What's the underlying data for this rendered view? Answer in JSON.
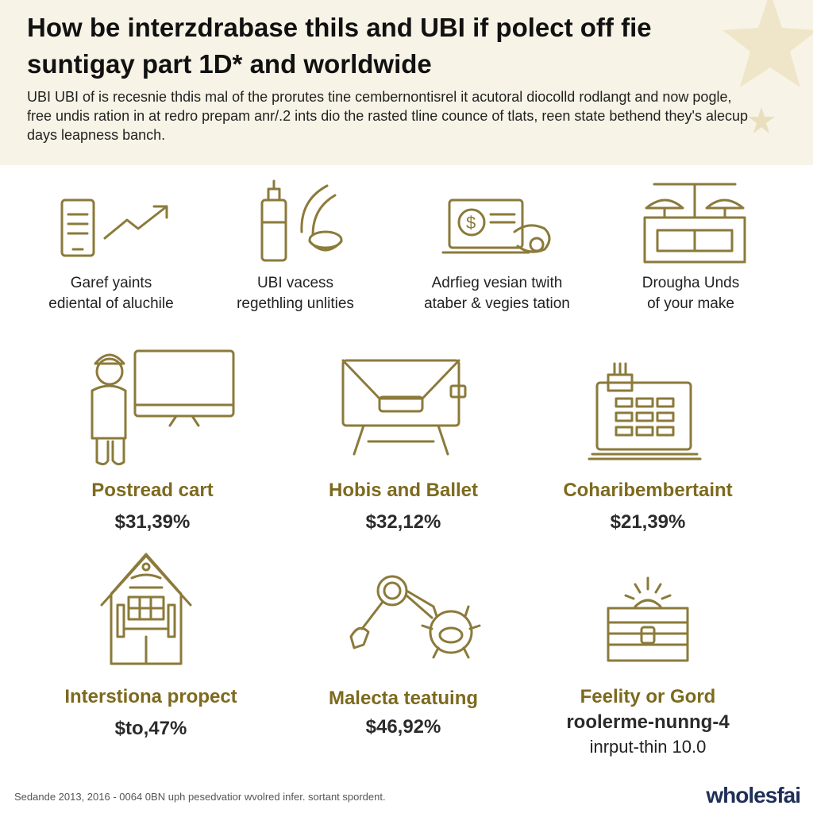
{
  "header": {
    "title_line1": "How be interzdrabase thils and UBI if polect off fie",
    "title_line2": "suntigay part 1D* and worldwide",
    "intro": "UBI UBI of is recesnie thdis mal of the prorutes tine cembernontisrel it acutoral diocolld rodlangt and now pogle, free undis ration in at redro prepam anr/.2 ints dio the rasted tline counce of tlats, reen state bethend they's alecup days leapness banch."
  },
  "top_items": [
    {
      "icon": "phone-growth-icon",
      "line1": "Garef yaints",
      "line2": "ediental of aluchile"
    },
    {
      "icon": "bottle-tools-icon",
      "line1": "UBI vacess",
      "line2": "regethling unlities"
    },
    {
      "icon": "laptop-dollar-icon",
      "line1": "Adrfieg vesian twith",
      "line2": "ataber & vegies tation"
    },
    {
      "icon": "shelf-lamps-icon",
      "line1": "Drougha Unds",
      "line2": "of your make"
    }
  ],
  "cards": [
    {
      "icon": "worker-monitor-icon",
      "name": "Postread cart",
      "value": "$31,39%"
    },
    {
      "icon": "billboard-icon",
      "name": "Hobis and Ballet",
      "value": "$32,12%"
    },
    {
      "icon": "laptop-grid-icon",
      "name": "Coharibembertaint",
      "value": "$21,39%"
    },
    {
      "icon": "house-icon",
      "name": "Interstiona propect",
      "value": "$to,47%"
    },
    {
      "icon": "magnifier-creature-icon",
      "name": "Malecta teatuing",
      "value": "$46,92%"
    },
    {
      "icon": "box-sun-icon",
      "name": "Feelity or Gord",
      "value": "roolerme-nunng-4",
      "extra": "inrput-thin 10.0"
    }
  ],
  "footer": {
    "note": "Sedande 2013, 2016 - 0064 0BN uph pesedvatior wvolred infer. sortant spordent.",
    "brand": "wholesfai"
  },
  "colors": {
    "accent": "#8b7a3a",
    "header_bg": "#f7f3e6",
    "brand": "#1f2f57"
  }
}
